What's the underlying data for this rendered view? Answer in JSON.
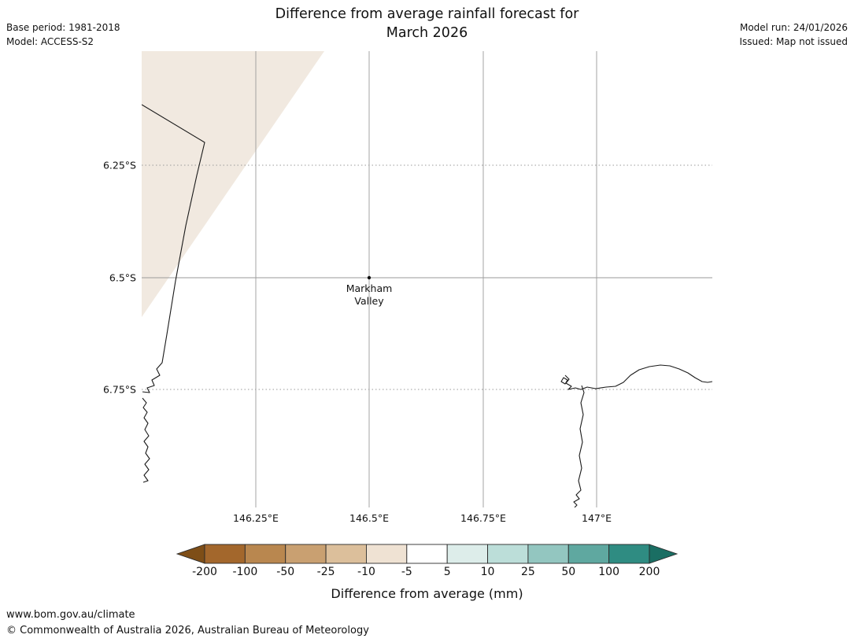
{
  "header": {
    "title_line1": "Difference from average rainfall forecast for",
    "title_line2": "March 2026",
    "base_period": "Base period: 1981-2018",
    "model": "Model: ACCESS-S2",
    "model_run": "Model run: 24/01/2026",
    "issued": "Issued: Map not issued"
  },
  "map": {
    "marker_label_line1": "Markham",
    "marker_label_line2": "Valley",
    "lat_ticks": [
      "6.25°S",
      "6.5°S",
      "6.75°S"
    ],
    "lon_ticks": [
      "146.25°E",
      "146.5°E",
      "146.75°E",
      "147°E"
    ],
    "shade_color": "#f1e9e0",
    "gridline_color": "#9a9a9a",
    "coastline_color": "#1a1a1a"
  },
  "legend": {
    "title": "Difference from average (mm)",
    "tick_labels": [
      "-200",
      "-100",
      "-50",
      "-25",
      "-10",
      "-5",
      "5",
      "10",
      "25",
      "50",
      "100",
      "200"
    ],
    "segment_colors": [
      "#a3672c",
      "#b9874f",
      "#c9a071",
      "#dcbf9b",
      "#efe2d3",
      "#ffffff",
      "#ddedea",
      "#bcded9",
      "#93c6c0",
      "#5fa8a0",
      "#2f8c82"
    ],
    "arrow_left_color": "#7e4e17",
    "arrow_right_color": "#1a6e63",
    "outline_color": "#2b2b2b"
  },
  "footer": {
    "url": "www.bom.gov.au/climate",
    "copyright": "© Commonwealth of Australia 2026, Australian Bureau of Meteorology"
  }
}
